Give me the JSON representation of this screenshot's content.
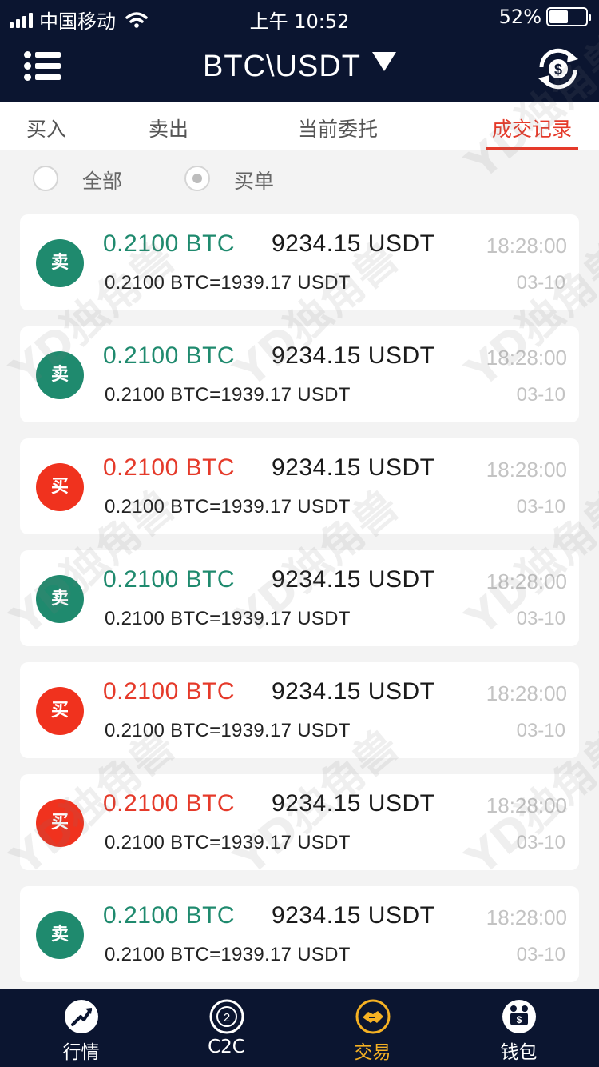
{
  "status_bar": {
    "carrier": "中国移动",
    "time": "上午 10:52",
    "battery_percent": "52%",
    "battery_level": 0.52
  },
  "header": {
    "pair": "BTC\\USDT",
    "menu_icon": "menu-icon",
    "exchange_icon": "currency-exchange-icon"
  },
  "tabs": [
    {
      "label": "买入"
    },
    {
      "label": "卖出"
    },
    {
      "label": "当前委托"
    },
    {
      "label": "成交记录",
      "active": true
    }
  ],
  "filters": [
    {
      "label": "全部",
      "checked": false
    },
    {
      "label": "买单",
      "checked": true
    }
  ],
  "colors": {
    "sell_green": "#1f8a6e",
    "buy_red": "#f0321e",
    "active_red": "#e53a2a",
    "dark_bg": "#0b1530",
    "nav_active": "#f5b123"
  },
  "trades": [
    {
      "side_label": "卖",
      "side": "sell",
      "amount": "0.2100 BTC",
      "total": "9234.15 USDT",
      "time": "18:28:00",
      "price": "0.2100 BTC=1939.17 USDT",
      "date": "03-10"
    },
    {
      "side_label": "卖",
      "side": "sell",
      "amount": "0.2100 BTC",
      "total": "9234.15 USDT",
      "time": "18:28:00",
      "price": "0.2100 BTC=1939.17 USDT",
      "date": "03-10"
    },
    {
      "side_label": "买",
      "side": "buy",
      "amount": "0.2100 BTC",
      "total": "9234.15 USDT",
      "time": "18:28:00",
      "price": "0.2100 BTC=1939.17 USDT",
      "date": "03-10"
    },
    {
      "side_label": "卖",
      "side": "sell",
      "amount": "0.2100 BTC",
      "total": "9234.15 USDT",
      "time": "18:28:00",
      "price": "0.2100 BTC=1939.17 USDT",
      "date": "03-10"
    },
    {
      "side_label": "买",
      "side": "buy",
      "amount": "0.2100 BTC",
      "total": "9234.15 USDT",
      "time": "18:28:00",
      "price": "0.2100 BTC=1939.17 USDT",
      "date": "03-10"
    },
    {
      "side_label": "买",
      "side": "buy",
      "amount": "0.2100 BTC",
      "total": "9234.15 USDT",
      "time": "18:28:00",
      "price": "0.2100 BTC=1939.17 USDT",
      "date": "03-10"
    },
    {
      "side_label": "卖",
      "side": "sell",
      "amount": "0.2100 BTC",
      "total": "9234.15 USDT",
      "time": "18:28:00",
      "price": "0.2100 BTC=1939.17 USDT",
      "date": "03-10"
    }
  ],
  "bottom_nav": [
    {
      "label": "行情",
      "icon": "market-chart-icon"
    },
    {
      "label": "C2C",
      "icon": "c2c-icon"
    },
    {
      "label": "交易",
      "icon": "handshake-icon",
      "active": true
    },
    {
      "label": "钱包",
      "icon": "wallet-icon"
    }
  ],
  "watermark": "YD独角兽"
}
